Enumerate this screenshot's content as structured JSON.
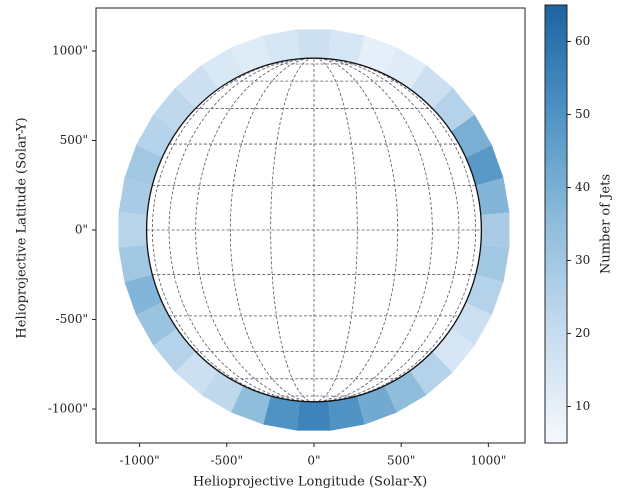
{
  "chart_data": {
    "type": "heatmap",
    "xlabel": "Helioprojective Longitude (Solar-X)",
    "ylabel": "Helioprojective Latitude (Solar-Y)",
    "colorbar_label": "Number of Jets",
    "xlim": [
      -1250,
      1210
    ],
    "ylim": [
      -1190,
      1240
    ],
    "xticks": [
      {
        "value": -1000,
        "label": "-1000\""
      },
      {
        "value": -500,
        "label": "-500\""
      },
      {
        "value": 0,
        "label": "0\""
      },
      {
        "value": 500,
        "label": "500\""
      },
      {
        "value": 1000,
        "label": "1000\""
      }
    ],
    "yticks": [
      {
        "value": -1000,
        "label": "-1000\""
      },
      {
        "value": -500,
        "label": "-500\""
      },
      {
        "value": 0,
        "label": "0\""
      },
      {
        "value": 500,
        "label": "500\""
      },
      {
        "value": 1000,
        "label": "1000\""
      }
    ],
    "clim": [
      5,
      65
    ],
    "cticks": [
      10,
      20,
      30,
      40,
      50,
      60
    ],
    "colormap": [
      "#f4f9fe",
      "#c7dcef",
      "#8fbddc",
      "#4f93c5",
      "#1d63a0"
    ],
    "grid": true,
    "position_angles": [
      0,
      10,
      20,
      30,
      40,
      50,
      60,
      70,
      80,
      90,
      100,
      110,
      120,
      130,
      140,
      150,
      160,
      170,
      180,
      190,
      200,
      210,
      220,
      230,
      240,
      250,
      260,
      270,
      280,
      290,
      300,
      310,
      320,
      330,
      340,
      350
    ],
    "values": [
      18,
      15,
      12,
      14,
      18,
      22,
      25,
      30,
      28,
      24,
      30,
      38,
      32,
      25,
      18,
      22,
      35,
      50,
      55,
      50,
      42,
      35,
      25,
      15,
      18,
      25,
      30,
      28,
      38,
      48,
      40,
      25,
      18,
      12,
      10,
      15
    ]
  }
}
